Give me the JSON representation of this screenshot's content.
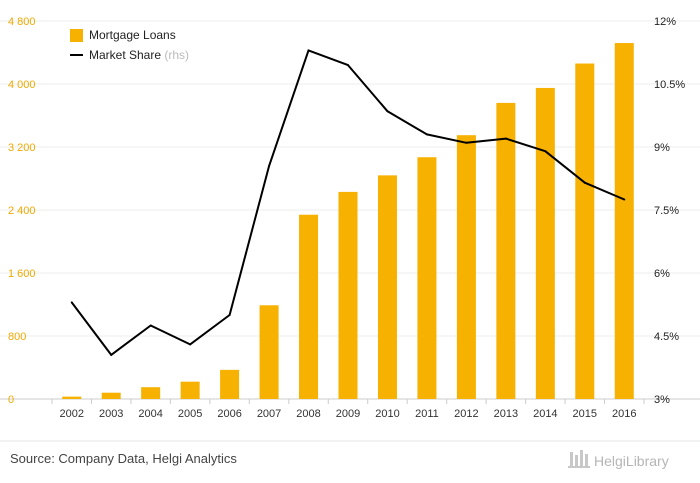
{
  "chart_data": {
    "type": "bar",
    "categories": [
      "2002",
      "2003",
      "2004",
      "2005",
      "2006",
      "2007",
      "2008",
      "2009",
      "2010",
      "2011",
      "2012",
      "2013",
      "2014",
      "2015",
      "2016"
    ],
    "series": [
      {
        "name": "Mortgage Loans",
        "kind": "bar",
        "axis": "left",
        "color": "#f7b100",
        "values": [
          30,
          80,
          150,
          220,
          370,
          1190,
          2340,
          2630,
          2840,
          3070,
          3350,
          3760,
          3950,
          4260,
          4520
        ]
      },
      {
        "name": "Market Share",
        "kind": "line",
        "axis": "right",
        "color": "#000000",
        "values": [
          5.3,
          4.05,
          4.75,
          4.3,
          5.0,
          8.55,
          11.3,
          10.95,
          9.85,
          9.3,
          9.1,
          9.2,
          8.9,
          8.15,
          7.75
        ]
      }
    ],
    "legend": {
      "position": "top-left",
      "items": [
        {
          "label": "Mortgage Loans",
          "note": "",
          "swatch": "square",
          "color": "#f7b100"
        },
        {
          "label": "Market Share",
          "note": "(rhs)",
          "swatch": "line",
          "color": "#000000"
        }
      ]
    },
    "y_left": {
      "ylim": [
        0,
        4800
      ],
      "ticks": [
        0,
        800,
        1600,
        2400,
        3200,
        4000,
        4800
      ],
      "tick_labels": [
        "0",
        "800",
        "1 600",
        "2 400",
        "3 200",
        "4 000",
        "4 800"
      ],
      "color": "#f2a900"
    },
    "y_right": {
      "ylim": [
        3,
        12
      ],
      "ticks": [
        3,
        4.5,
        6,
        7.5,
        9,
        10.5,
        12
      ],
      "tick_labels": [
        "3%",
        "4.5%",
        "6%",
        "7.5%",
        "9%",
        "10.5%",
        "12%"
      ]
    },
    "grid": true,
    "title": "",
    "xlabel": "",
    "ylabel": ""
  },
  "footer": {
    "source": "Source: Company Data, Helgi Analytics",
    "brand": "HelgiLibrary"
  }
}
